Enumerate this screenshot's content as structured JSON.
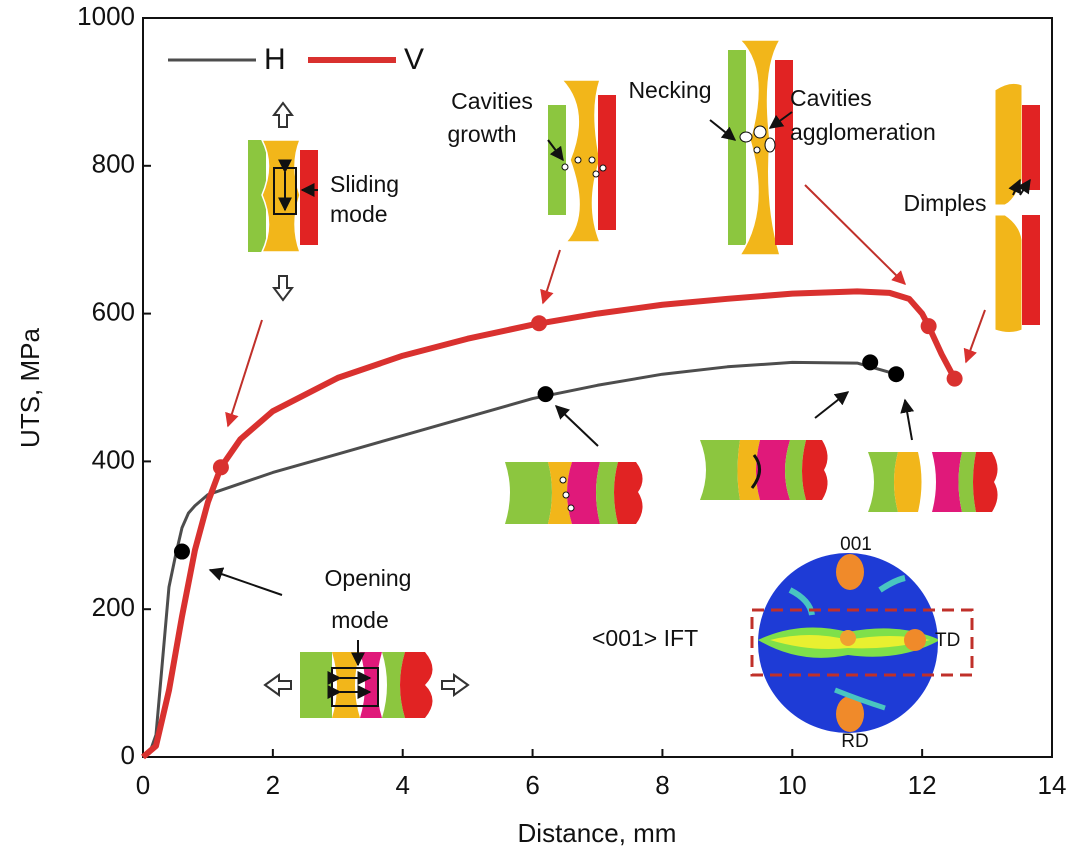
{
  "chart_data": {
    "type": "line",
    "xlabel": "Distance, mm",
    "ylabel": "UTS, MPa",
    "xlim": [
      0,
      14
    ],
    "ylim": [
      0,
      1000
    ],
    "xticks": [
      0,
      2,
      4,
      6,
      8,
      10,
      12,
      14
    ],
    "yticks": [
      0,
      200,
      400,
      600,
      800,
      1000
    ],
    "series": [
      {
        "name": "H",
        "color": "#4d4d4d",
        "x": [
          0,
          0.1,
          0.2,
          0.3,
          0.4,
          0.5,
          0.6,
          0.7,
          0.8,
          1,
          1.5,
          2,
          3,
          4,
          5,
          6,
          7,
          8,
          9,
          10,
          11,
          11.6
        ],
        "y": [
          0,
          5,
          30,
          130,
          230,
          272,
          310,
          330,
          340,
          355,
          370,
          385,
          410,
          435,
          460,
          485,
          503,
          518,
          528,
          534,
          533,
          518
        ],
        "markers_x": [
          0.6,
          6.2,
          11.2,
          11.6
        ],
        "markers_y": [
          278,
          491,
          534,
          518
        ],
        "marker_color": "#000000"
      },
      {
        "name": "V",
        "color": "#d9312f",
        "x": [
          0,
          0.2,
          0.4,
          0.6,
          0.8,
          1,
          1.2,
          1.5,
          2,
          3,
          4,
          5,
          6,
          7,
          8,
          9,
          10,
          11,
          11.5,
          11.8,
          12,
          12.1,
          12.3,
          12.5
        ],
        "y": [
          0,
          15,
          90,
          190,
          280,
          345,
          392,
          430,
          468,
          513,
          543,
          566,
          585,
          600,
          612,
          620,
          627,
          630,
          628,
          620,
          600,
          583,
          545,
          512
        ],
        "markers_x": [
          1.2,
          6.1,
          12.1,
          12.5
        ],
        "markers_y": [
          392,
          587,
          583,
          512
        ],
        "marker_color": "#d9312f"
      }
    ],
    "annotations": [
      [
        "Sliding",
        "mode"
      ],
      [
        "Cavities",
        "growth"
      ],
      [
        "Necking"
      ],
      [
        "Cavities",
        "agglomeration"
      ],
      [
        "Dimples"
      ],
      [
        "Opening",
        "mode"
      ],
      [
        "<001> IFT"
      ],
      [
        "001"
      ],
      [
        "TD"
      ],
      [
        "RD"
      ]
    ]
  }
}
